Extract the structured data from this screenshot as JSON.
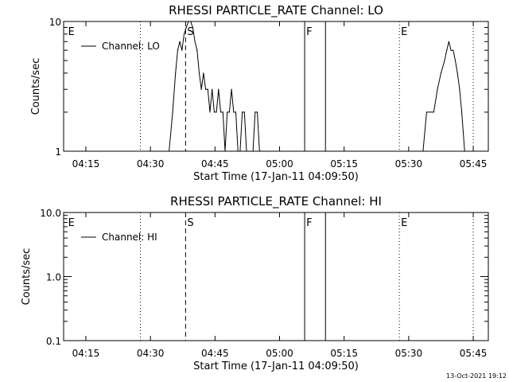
{
  "footer": {
    "date": "13-Oct-2021 19:12"
  },
  "chart_data": [
    {
      "type": "line",
      "title": "RHESSI PARTICLE_RATE Channel: LO",
      "xlabel": "Start Time (17-Jan-11 04:09:50)",
      "ylabel": "Counts/sec",
      "yscale": "log",
      "xlim": [
        "04:09:50",
        "05:48:30"
      ],
      "ylim": [
        1,
        10
      ],
      "x_ticks": [
        "04:15",
        "04:30",
        "04:45",
        "05:00",
        "05:15",
        "05:30",
        "05:45"
      ],
      "y_ticks": [
        "1",
        "10"
      ],
      "legend": {
        "position": "top-left",
        "entries": [
          "Channel: LO"
        ]
      },
      "annotations": [
        {
          "text": "E",
          "x": "04:10:30",
          "line": "none"
        },
        {
          "text": "",
          "x": "04:27:40",
          "line": "dotted"
        },
        {
          "text": "S",
          "x": "04:38:10",
          "line": "dashed"
        },
        {
          "text": "F",
          "x": "05:05:50",
          "line": "solid"
        },
        {
          "text": "",
          "x": "05:10:40",
          "line": "solid"
        },
        {
          "text": "E",
          "x": "05:27:50",
          "line": "dotted"
        },
        {
          "text": "",
          "x": "05:45:00",
          "line": "dotted"
        }
      ],
      "series": [
        {
          "name": "Channel: LO",
          "x": [
            "04:34:20",
            "04:35:10",
            "04:35:50",
            "04:36:20",
            "04:36:50",
            "04:37:20",
            "04:37:50",
            "04:38:20",
            "04:38:50",
            "04:39:20",
            "04:39:50",
            "04:40:20",
            "04:40:50",
            "04:41:20",
            "04:41:50",
            "04:42:20",
            "04:42:50",
            "04:43:20",
            "04:43:50",
            "04:44:20",
            "04:44:50",
            "04:45:20",
            "04:45:50",
            "04:46:20",
            "04:46:50",
            "04:47:20",
            "04:47:50",
            "04:48:20",
            "04:48:50",
            "04:49:20",
            "04:49:50",
            "04:50:20",
            "04:50:50",
            "04:51:20",
            "04:51:50",
            "04:52:20",
            "04:52:50",
            "04:53:20",
            "04:53:50",
            "04:54:20",
            "04:54:50",
            "04:55:20",
            "04:55:50",
            "05:33:20",
            "05:34:10",
            "05:35:00",
            "05:35:50",
            "05:36:40",
            "05:37:30",
            "05:38:20",
            "05:38:50",
            "05:39:20",
            "05:39:50",
            "05:40:20",
            "05:40:50",
            "05:41:20",
            "05:41:50",
            "05:42:20",
            "05:43:00"
          ],
          "values": [
            1,
            2,
            4,
            6,
            7,
            6,
            8,
            9,
            10,
            10,
            9,
            7,
            6,
            4,
            3,
            4,
            3,
            3,
            2,
            3,
            2,
            2,
            3,
            2,
            2,
            1,
            2,
            2,
            3,
            2,
            2,
            1,
            1,
            2,
            2,
            1,
            1,
            1,
            1,
            2,
            2,
            1,
            1,
            1,
            2,
            2,
            2,
            3,
            4,
            5,
            6,
            7,
            6,
            6,
            5,
            4,
            3,
            2,
            1
          ]
        }
      ]
    },
    {
      "type": "line",
      "title": "RHESSI PARTICLE_RATE Channel: HI",
      "xlabel": "Start Time (17-Jan-11 04:09:50)",
      "ylabel": "Counts/sec",
      "yscale": "log",
      "xlim": [
        "04:09:50",
        "05:48:30"
      ],
      "ylim": [
        0.1,
        10
      ],
      "x_ticks": [
        "04:15",
        "04:30",
        "04:45",
        "05:00",
        "05:15",
        "05:30",
        "05:45"
      ],
      "y_ticks": [
        "0.1",
        "1.0",
        "10.0"
      ],
      "legend": {
        "position": "top-left",
        "entries": [
          "Channel: HI"
        ]
      },
      "annotations": [
        {
          "text": "E",
          "x": "04:10:30",
          "line": "none"
        },
        {
          "text": "",
          "x": "04:27:40",
          "line": "dotted"
        },
        {
          "text": "S",
          "x": "04:38:10",
          "line": "dashed"
        },
        {
          "text": "F",
          "x": "05:05:50",
          "line": "solid"
        },
        {
          "text": "",
          "x": "05:10:40",
          "line": "solid"
        },
        {
          "text": "E",
          "x": "05:27:50",
          "line": "dotted"
        },
        {
          "text": "",
          "x": "05:45:00",
          "line": "dotted"
        }
      ],
      "series": [
        {
          "name": "Channel: HI",
          "x": [],
          "values": []
        }
      ]
    }
  ]
}
